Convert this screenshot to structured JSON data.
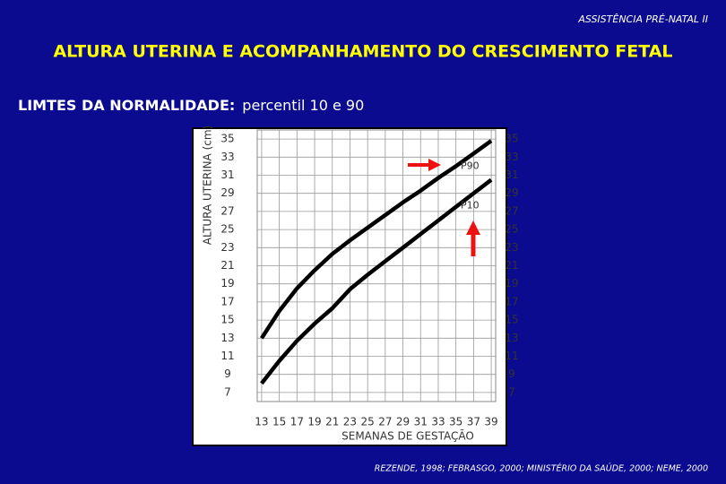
{
  "header": "ASSISTÊNCIA PRÉ-NATAL II",
  "title": "ALTURA UTERINA E ACOMPANHAMENTO DO CRESCIMENTO FETAL",
  "subtitle_label": "LIMTES DA NORMALIDADE:",
  "subtitle_text": "percentil 10 e 90",
  "citation": "REZENDE, 1998; FEBRASGO, 2000; MINISTÉRIO DA SAÚDE, 2000; NEME, 2000",
  "chart_data": {
    "type": "line",
    "x_label": "SEMANAS DE GESTAÇÃO",
    "y_label": "ALTURA UTERINA (cm)",
    "x": [
      13,
      15,
      17,
      19,
      21,
      23,
      25,
      27,
      29,
      31,
      33,
      35,
      37,
      39
    ],
    "series": [
      {
        "name": "P90",
        "color": "#000000",
        "values": [
          13,
          16,
          18.5,
          20.5,
          22.3,
          23.8,
          25.2,
          26.6,
          28,
          29.3,
          30.7,
          32,
          33.4,
          34.8
        ]
      },
      {
        "name": "P10",
        "color": "#000000",
        "values": [
          8,
          10.5,
          12.7,
          14.6,
          16.3,
          18.4,
          20,
          21.5,
          23,
          24.5,
          26,
          27.5,
          29,
          30.5
        ]
      }
    ],
    "xlim": [
      12.5,
      39.5
    ],
    "ylim": [
      6,
      36
    ],
    "xticks": [
      13,
      15,
      17,
      19,
      21,
      23,
      25,
      27,
      29,
      31,
      33,
      35,
      37,
      39
    ],
    "yticks": [
      7,
      9,
      11,
      13,
      15,
      17,
      19,
      21,
      23,
      25,
      27,
      29,
      31,
      33,
      35
    ],
    "grid": true
  }
}
